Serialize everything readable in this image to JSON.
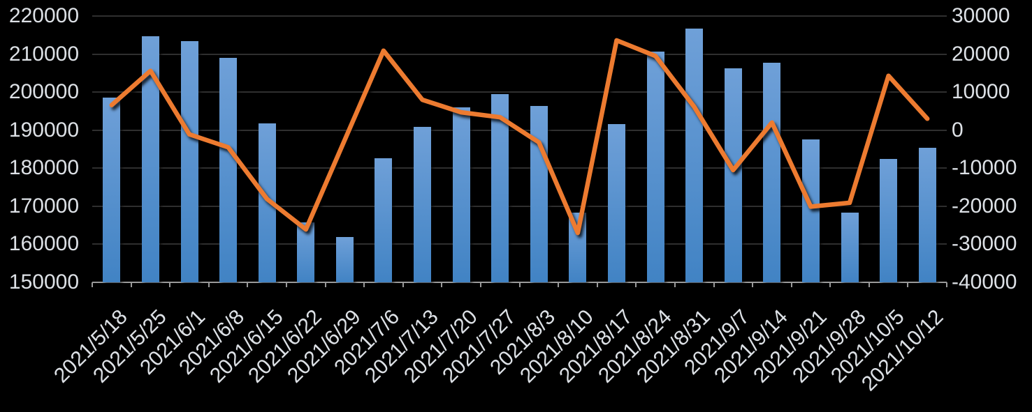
{
  "chart_data": {
    "type": "combo",
    "categories": [
      "2021/5/18",
      "2021/5/25",
      "2021/6/1",
      "2021/6/8",
      "2021/6/15",
      "2021/6/22",
      "2021/6/29",
      "2021/7/6",
      "2021/7/13",
      "2021/7/20",
      "2021/7/27",
      "2021/8/3",
      "2021/8/10",
      "2021/8/17",
      "2021/8/24",
      "2021/8/31",
      "2021/9/7",
      "2021/9/14",
      "2021/9/21",
      "2021/9/28",
      "2021/10/5",
      "2021/10/12"
    ],
    "series": [
      {
        "name": "bars",
        "type": "bar",
        "axis": "left",
        "values": [
          198500,
          214700,
          213400,
          209100,
          191800,
          165800,
          162000,
          182700,
          190900,
          196000,
          199500,
          196300,
          168300,
          191600,
          210700,
          216800,
          206200,
          207800,
          187500,
          168300,
          182500,
          185400
        ]
      },
      {
        "name": "line",
        "type": "line",
        "axis": "right",
        "values": [
          6600,
          15600,
          -1100,
          -4500,
          -18100,
          -26100,
          -2600,
          20900,
          8000,
          4700,
          3400,
          -3200,
          -27000,
          23600,
          19500,
          6100,
          -10500,
          2000,
          -20100,
          -19100,
          14300,
          3000
        ]
      }
    ],
    "left_axis": {
      "min": 150000,
      "max": 220000,
      "step": 10000,
      "tick_labels": [
        "220000",
        "210000",
        "200000",
        "190000",
        "180000",
        "170000",
        "160000",
        "150000"
      ]
    },
    "right_axis": {
      "min": -40000,
      "max": 30000,
      "step": 10000,
      "tick_labels": [
        "30000",
        "20000",
        "10000",
        "0",
        "-10000",
        "-20000",
        "-30000",
        "-40000"
      ]
    },
    "title": "",
    "legend": "none",
    "grid": "horizontal",
    "colors": {
      "background": "#000000",
      "bar_top": "#6FA0D8",
      "bar_bottom": "#4183C4",
      "line": "#ED7B30",
      "gridline": "#2F2F2F",
      "axis_line": "#9A9A9A",
      "tick_label": "#DDE1E6"
    }
  }
}
